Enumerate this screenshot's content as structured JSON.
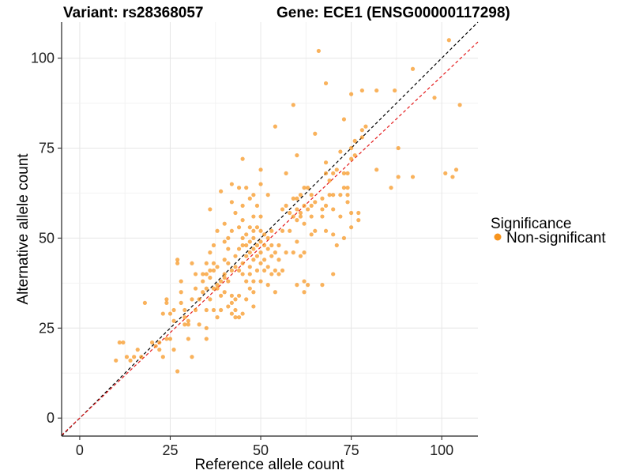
{
  "chart_data": {
    "type": "scatter",
    "title_left": "Variant: rs28368057",
    "title_right": "Gene: ECE1 (ENSG00000117298)",
    "xlabel": "Reference allele count",
    "ylabel": "Alternative allele count",
    "xlim": [
      -5,
      110
    ],
    "ylim": [
      -5,
      110
    ],
    "xticks": [
      0,
      25,
      50,
      75,
      100
    ],
    "yticks": [
      0,
      25,
      50,
      75,
      100
    ],
    "grid": true,
    "legend": {
      "title": "Significance",
      "placement": "right",
      "entries": [
        {
          "label": "Non-significant",
          "color": "#f7941d"
        }
      ]
    },
    "reference_lines": [
      {
        "style": "dashed",
        "color": "#000000",
        "slope": 1.0,
        "intercept": 0
      },
      {
        "style": "dashed",
        "color": "#e41a1c",
        "slope": 0.95,
        "intercept": 0
      }
    ],
    "point_color": "#f7941d",
    "points": [
      [
        10,
        16
      ],
      [
        11,
        21
      ],
      [
        12,
        21
      ],
      [
        13,
        17
      ],
      [
        14,
        16
      ],
      [
        15,
        17
      ],
      [
        16,
        19
      ],
      [
        17,
        17
      ],
      [
        18,
        32
      ],
      [
        20,
        21
      ],
      [
        21,
        20
      ],
      [
        22,
        21
      ],
      [
        22,
        19
      ],
      [
        23,
        29
      ],
      [
        23,
        17
      ],
      [
        24,
        32
      ],
      [
        24,
        33
      ],
      [
        24,
        22
      ],
      [
        25,
        22
      ],
      [
        25,
        29
      ],
      [
        26,
        30
      ],
      [
        26,
        19
      ],
      [
        26,
        27
      ],
      [
        27,
        13
      ],
      [
        27,
        43
      ],
      [
        27,
        44
      ],
      [
        28,
        38
      ],
      [
        28,
        35
      ],
      [
        28,
        32
      ],
      [
        29,
        30
      ],
      [
        29,
        28
      ],
      [
        29,
        26
      ],
      [
        30,
        27
      ],
      [
        30,
        22
      ],
      [
        30,
        26
      ],
      [
        31,
        17
      ],
      [
        31,
        33
      ],
      [
        31,
        43
      ],
      [
        32,
        40
      ],
      [
        32,
        36
      ],
      [
        32,
        30
      ],
      [
        33,
        26
      ],
      [
        33,
        33
      ],
      [
        34,
        35
      ],
      [
        34,
        38
      ],
      [
        34,
        40
      ],
      [
        35,
        22
      ],
      [
        35,
        25
      ],
      [
        35,
        30
      ],
      [
        35,
        36
      ],
      [
        35,
        40
      ],
      [
        35,
        43
      ],
      [
        36,
        39
      ],
      [
        36,
        41
      ],
      [
        36,
        33
      ],
      [
        36,
        46
      ],
      [
        36,
        58
      ],
      [
        37,
        30
      ],
      [
        37,
        36
      ],
      [
        37,
        41
      ],
      [
        37,
        48
      ],
      [
        37,
        43
      ],
      [
        38,
        36
      ],
      [
        38,
        37
      ],
      [
        38,
        42
      ],
      [
        38,
        52
      ],
      [
        38,
        28
      ],
      [
        39,
        30
      ],
      [
        39,
        34
      ],
      [
        39,
        38
      ],
      [
        39,
        63
      ],
      [
        40,
        35
      ],
      [
        40,
        39
      ],
      [
        40,
        40
      ],
      [
        40,
        44
      ],
      [
        40,
        49
      ],
      [
        40,
        54
      ],
      [
        41,
        31
      ],
      [
        41,
        38
      ],
      [
        41,
        43
      ],
      [
        41,
        47
      ],
      [
        41,
        50
      ],
      [
        42,
        29
      ],
      [
        42,
        32
      ],
      [
        42,
        34
      ],
      [
        42,
        41
      ],
      [
        42,
        52
      ],
      [
        42,
        60
      ],
      [
        42,
        65
      ],
      [
        43,
        28
      ],
      [
        43,
        30
      ],
      [
        43,
        33
      ],
      [
        43,
        42
      ],
      [
        43,
        45
      ],
      [
        43,
        57
      ],
      [
        44,
        28
      ],
      [
        44,
        34
      ],
      [
        44,
        41
      ],
      [
        44,
        47
      ],
      [
        44,
        53
      ],
      [
        44,
        64
      ],
      [
        45,
        29
      ],
      [
        45,
        40
      ],
      [
        45,
        43
      ],
      [
        45,
        48
      ],
      [
        45,
        50
      ],
      [
        45,
        55
      ],
      [
        45,
        59
      ],
      [
        45,
        72
      ],
      [
        46,
        33
      ],
      [
        46,
        38
      ],
      [
        46,
        45
      ],
      [
        46,
        48
      ],
      [
        46,
        51
      ],
      [
        46,
        64
      ],
      [
        47,
        36
      ],
      [
        47,
        40
      ],
      [
        47,
        42
      ],
      [
        47,
        46
      ],
      [
        47,
        49
      ],
      [
        47,
        53
      ],
      [
        47,
        61
      ],
      [
        48,
        31
      ],
      [
        48,
        35
      ],
      [
        48,
        38
      ],
      [
        48,
        44
      ],
      [
        48,
        47
      ],
      [
        48,
        50
      ],
      [
        48,
        52
      ],
      [
        48,
        56
      ],
      [
        48,
        62
      ],
      [
        49,
        41
      ],
      [
        49,
        45
      ],
      [
        49,
        48
      ],
      [
        49,
        53
      ],
      [
        49,
        59
      ],
      [
        50,
        38
      ],
      [
        50,
        43
      ],
      [
        50,
        46
      ],
      [
        50,
        49
      ],
      [
        50,
        52
      ],
      [
        50,
        56
      ],
      [
        50,
        65
      ],
      [
        50,
        69
      ],
      [
        51,
        41
      ],
      [
        51,
        44
      ],
      [
        51,
        48
      ],
      [
        51,
        51
      ],
      [
        52,
        37
      ],
      [
        52,
        42
      ],
      [
        52,
        47
      ],
      [
        52,
        50
      ],
      [
        52,
        62
      ],
      [
        53,
        40
      ],
      [
        53,
        45
      ],
      [
        53,
        48
      ],
      [
        53,
        52
      ],
      [
        54,
        35
      ],
      [
        54,
        41
      ],
      [
        54,
        46
      ],
      [
        54,
        81
      ],
      [
        55,
        40
      ],
      [
        55,
        44
      ],
      [
        55,
        48
      ],
      [
        56,
        41
      ],
      [
        56,
        52
      ],
      [
        56,
        58
      ],
      [
        57,
        46
      ],
      [
        57,
        59
      ],
      [
        57,
        68
      ],
      [
        58,
        52
      ],
      [
        58,
        57
      ],
      [
        59,
        46
      ],
      [
        59,
        56
      ],
      [
        59,
        61
      ],
      [
        59,
        87
      ],
      [
        60,
        37
      ],
      [
        60,
        49
      ],
      [
        60,
        55
      ],
      [
        60,
        58
      ],
      [
        60,
        61
      ],
      [
        60,
        73
      ],
      [
        61,
        45
      ],
      [
        61,
        56
      ],
      [
        61,
        57
      ],
      [
        61,
        62
      ],
      [
        62,
        35
      ],
      [
        62,
        38
      ],
      [
        62,
        46
      ],
      [
        62,
        54
      ],
      [
        62,
        59
      ],
      [
        62,
        64
      ],
      [
        63,
        37
      ],
      [
        63,
        58
      ],
      [
        63,
        64
      ],
      [
        64,
        51
      ],
      [
        64,
        56
      ],
      [
        64,
        59
      ],
      [
        64,
        62
      ],
      [
        65,
        52
      ],
      [
        65,
        60
      ],
      [
        65,
        79
      ],
      [
        66,
        102
      ],
      [
        67,
        37
      ],
      [
        67,
        56
      ],
      [
        67,
        58
      ],
      [
        67,
        61
      ],
      [
        68,
        52
      ],
      [
        68,
        59
      ],
      [
        68,
        68
      ],
      [
        68,
        71
      ],
      [
        68,
        93
      ],
      [
        69,
        62
      ],
      [
        69,
        66
      ],
      [
        70,
        40
      ],
      [
        70,
        51
      ],
      [
        70,
        58
      ],
      [
        70,
        62
      ],
      [
        70,
        68
      ],
      [
        71,
        48
      ],
      [
        71,
        69
      ],
      [
        72,
        56
      ],
      [
        72,
        62
      ],
      [
        72,
        74
      ],
      [
        73,
        50
      ],
      [
        73,
        64
      ],
      [
        73,
        68
      ],
      [
        73,
        83
      ],
      [
        74,
        60
      ],
      [
        74,
        62
      ],
      [
        74,
        64
      ],
      [
        74,
        68
      ],
      [
        75,
        53
      ],
      [
        75,
        57
      ],
      [
        75,
        72
      ],
      [
        75,
        75
      ],
      [
        75,
        90
      ],
      [
        76,
        73
      ],
      [
        76,
        77
      ],
      [
        77,
        55
      ],
      [
        77,
        57
      ],
      [
        78,
        78
      ],
      [
        78,
        80
      ],
      [
        78,
        91
      ],
      [
        79,
        81
      ],
      [
        82,
        69
      ],
      [
        82,
        91
      ],
      [
        86,
        64
      ],
      [
        87,
        91
      ],
      [
        88,
        67
      ],
      [
        88,
        75
      ],
      [
        92,
        67
      ],
      [
        92,
        97
      ],
      [
        98,
        89
      ],
      [
        101,
        68
      ],
      [
        102,
        105
      ],
      [
        103,
        67
      ],
      [
        104,
        69
      ],
      [
        105,
        87
      ]
    ]
  }
}
